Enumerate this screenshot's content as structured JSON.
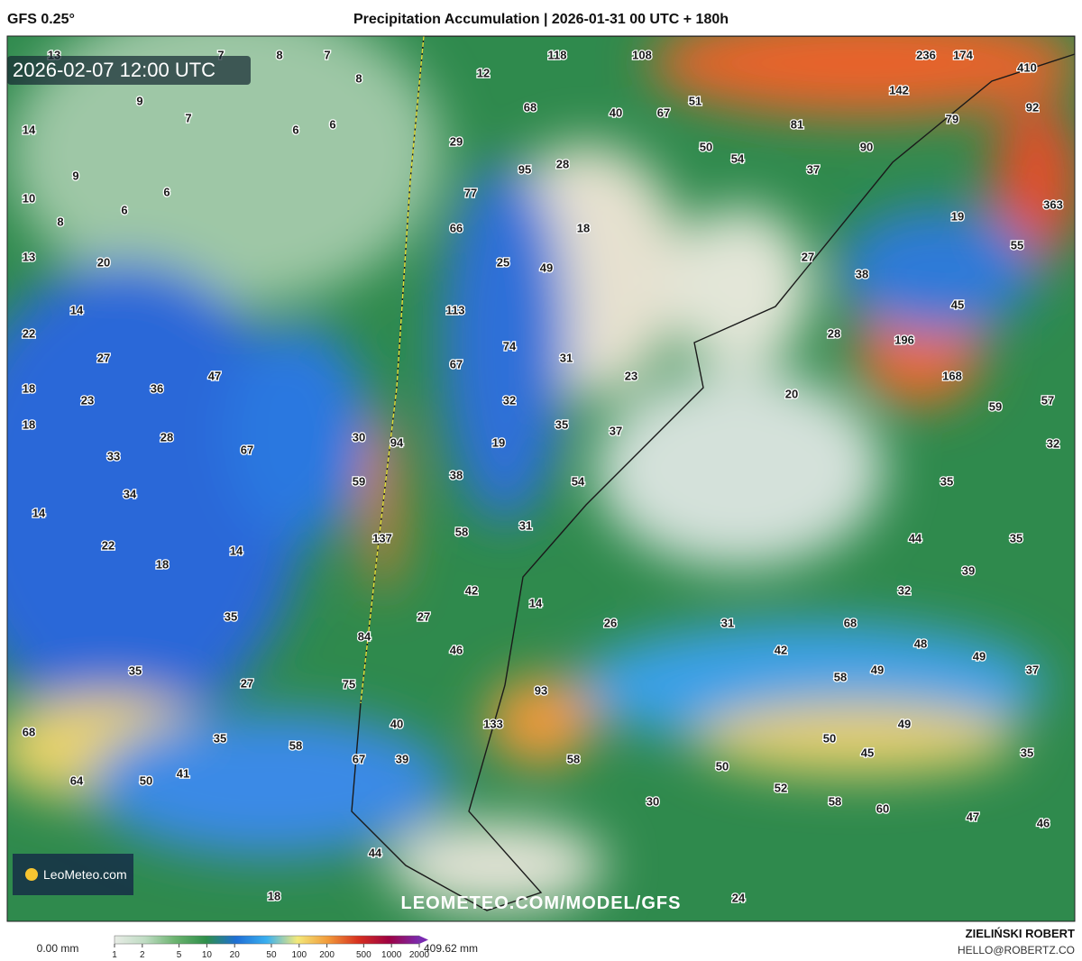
{
  "header": {
    "model": "GFS 0.25°",
    "title": "Precipitation Accumulation | 2026-01-31 00 UTC + 180h"
  },
  "map": {
    "valid_time": "2026-02-07 12:00 UTC",
    "logo": "LeoMeteo.com",
    "url": "LEOMETEO.COM/MODEL/GFS",
    "labels": [
      13,
      7,
      8,
      7,
      8,
      9,
      7,
      14,
      6,
      6,
      9,
      6,
      10,
      6,
      8,
      13,
      20,
      14,
      22,
      27,
      47,
      18,
      36,
      23,
      18,
      28,
      67,
      33,
      34,
      14,
      22,
      14,
      18,
      35,
      35,
      27,
      68,
      35,
      58,
      64,
      50,
      41,
      18,
      12,
      118,
      108,
      68,
      40,
      67,
      51,
      29,
      50,
      54,
      95,
      28,
      77,
      66,
      18,
      25,
      49,
      113,
      74,
      67,
      31,
      23,
      32,
      35,
      37,
      30,
      94,
      19,
      38,
      59,
      54,
      137,
      58,
      31,
      42,
      14,
      27,
      26,
      84,
      46,
      75,
      93,
      40,
      133,
      67,
      39,
      58,
      30,
      44,
      24,
      236,
      174,
      410,
      142,
      92,
      81,
      79,
      90,
      37,
      363,
      19,
      55,
      27,
      38,
      45,
      28,
      196,
      168,
      20,
      59,
      57,
      32,
      35,
      44,
      35,
      39,
      32,
      31,
      68,
      42,
      48,
      49,
      37,
      58,
      49,
      49,
      50,
      45,
      35,
      50,
      52,
      58,
      60,
      47,
      46
    ]
  },
  "colorbar": {
    "min_label": "0.00 mm",
    "max_label": "409.62 mm",
    "log_scale": true,
    "ticks": [
      1,
      2,
      5,
      10,
      20,
      50,
      100,
      200,
      500,
      1000,
      2000
    ],
    "colors": [
      "#e8ece6",
      "#bfdcc3",
      "#6bb36f",
      "#2f8f4a",
      "#1f6fd6",
      "#3ab0f0",
      "#f3e97a",
      "#f29a3a",
      "#d7301f",
      "#9e0142",
      "#7a2ab0"
    ]
  },
  "footer": {
    "author": "ZIELIŃSKI ROBERT",
    "email": "HELLO@ROBERTZ.CO"
  }
}
